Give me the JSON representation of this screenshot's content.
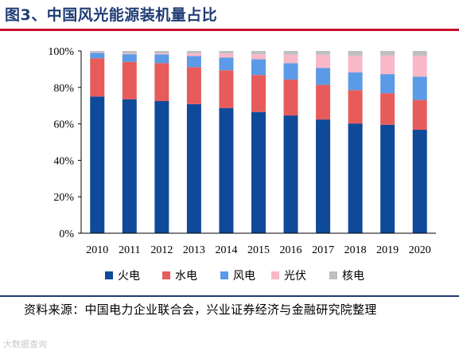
{
  "figure": {
    "title": "图3、中国风光能源装机量占比",
    "source": "资料来源：中国电力企业联合会，兴业证券经济与金融研究院整理",
    "watermark": "大数据查询"
  },
  "chart_data": {
    "type": "bar",
    "stacked": true,
    "percent": true,
    "categories": [
      "2010",
      "2011",
      "2012",
      "2013",
      "2014",
      "2015",
      "2016",
      "2017",
      "2018",
      "2019",
      "2020"
    ],
    "series": [
      {
        "name": "火电",
        "color": "#0e4a99",
        "values": [
          75,
          73.5,
          72.5,
          70.8,
          68.7,
          66.5,
          64.6,
          62.4,
          60.2,
          59.5,
          56.8
        ]
      },
      {
        "name": "水电",
        "color": "#e85b5b",
        "values": [
          21,
          20.5,
          20.8,
          20.3,
          20.7,
          20.3,
          19.7,
          19,
          18.3,
          17.3,
          16.3
        ]
      },
      {
        "name": "风电",
        "color": "#5b9ae6",
        "values": [
          3,
          4.2,
          4.8,
          6.1,
          7,
          8.6,
          9,
          9.2,
          9.7,
          10.5,
          12.8
        ]
      },
      {
        "name": "光伏",
        "color": "#f9b8c7",
        "values": [
          0.3,
          0.4,
          0.6,
          1.5,
          2.2,
          2.8,
          4.7,
          7.3,
          9.2,
          10.2,
          11.5
        ]
      },
      {
        "name": "核电",
        "color": "#bfbfbf",
        "values": [
          0.7,
          1.4,
          1.3,
          1.3,
          1.4,
          1.8,
          2,
          2.1,
          2.6,
          2.5,
          2.6
        ]
      }
    ],
    "ylim": [
      0,
      100
    ],
    "yticks": [
      "0%",
      "20%",
      "40%",
      "60%",
      "80%",
      "100%"
    ],
    "xlabel": "",
    "ylabel": "",
    "grid": false,
    "legend_position": "bottom"
  }
}
